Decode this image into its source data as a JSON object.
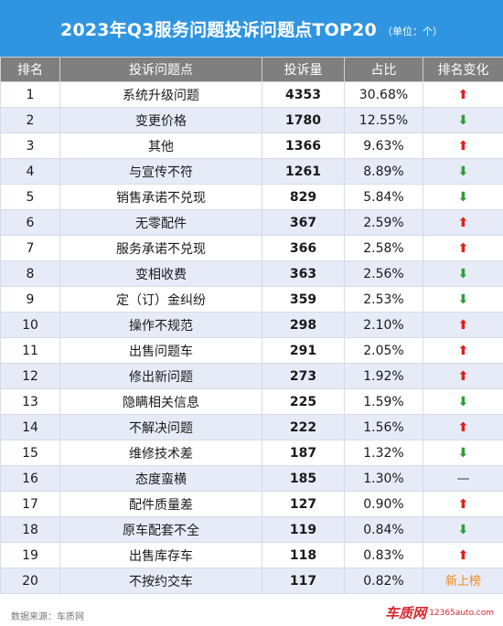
{
  "header": {
    "title": "2023年Q3服务问题投诉问题点TOP20",
    "unit": "（单位：个）"
  },
  "columns": [
    "排名",
    "投诉问题点",
    "投诉量",
    "占比",
    "排名变化"
  ],
  "footer": {
    "source": "数据来源：车质网",
    "logo": "车质网",
    "url": "12365auto.com"
  },
  "colors": {
    "header_bg": "#2f95e0",
    "th_bg": "#7f7f7f",
    "up": "#e0211b",
    "down": "#2e9e3a",
    "new": "#f08a1f"
  },
  "chart_data": {
    "type": "table",
    "title": "2023年Q3服务问题投诉问题点TOP20",
    "unit": "（单位：个）",
    "rows": [
      {
        "rank": "1",
        "issue": "系统升级问题",
        "count": 4353,
        "share": "30.68%",
        "change": "up"
      },
      {
        "rank": "2",
        "issue": "变更价格",
        "count": 1780,
        "share": "12.55%",
        "change": "down"
      },
      {
        "rank": "3",
        "issue": "其他",
        "count": 1366,
        "share": "9.63%",
        "change": "up"
      },
      {
        "rank": "4",
        "issue": "与宣传不符",
        "count": 1261,
        "share": "8.89%",
        "change": "down"
      },
      {
        "rank": "5",
        "issue": "销售承诺不兑现",
        "count": 829,
        "share": "5.84%",
        "change": "down"
      },
      {
        "rank": "6",
        "issue": "无零配件",
        "count": 367,
        "share": "2.59%",
        "change": "up"
      },
      {
        "rank": "7",
        "issue": "服务承诺不兑现",
        "count": 366,
        "share": "2.58%",
        "change": "up"
      },
      {
        "rank": "8",
        "issue": "变相收费",
        "count": 363,
        "share": "2.56%",
        "change": "down"
      },
      {
        "rank": "9",
        "issue": "定（订）金纠纷",
        "count": 359,
        "share": "2.53%",
        "change": "down"
      },
      {
        "rank": "10",
        "issue": "操作不规范",
        "count": 298,
        "share": "2.10%",
        "change": "up"
      },
      {
        "rank": "11",
        "issue": "出售问题车",
        "count": 291,
        "share": "2.05%",
        "change": "up"
      },
      {
        "rank": "12",
        "issue": "修出新问题",
        "count": 273,
        "share": "1.92%",
        "change": "up"
      },
      {
        "rank": "13",
        "issue": "隐瞒相关信息",
        "count": 225,
        "share": "1.59%",
        "change": "down"
      },
      {
        "rank": "14",
        "issue": "不解决问题",
        "count": 222,
        "share": "1.56%",
        "change": "up"
      },
      {
        "rank": "15",
        "issue": "维修技术差",
        "count": 187,
        "share": "1.32%",
        "change": "down"
      },
      {
        "rank": "16",
        "issue": "态度蛮横",
        "count": 185,
        "share": "1.30%",
        "change": "flat"
      },
      {
        "rank": "17",
        "issue": "配件质量差",
        "count": 127,
        "share": "0.90%",
        "change": "up"
      },
      {
        "rank": "18",
        "issue": "原车配套不全",
        "count": 119,
        "share": "0.84%",
        "change": "down"
      },
      {
        "rank": "19",
        "issue": "出售库存车",
        "count": 118,
        "share": "0.83%",
        "change": "up"
      },
      {
        "rank": "20",
        "issue": "不按约交车",
        "count": 117,
        "share": "0.82%",
        "change": "new",
        "change_label": "新上榜"
      }
    ]
  }
}
